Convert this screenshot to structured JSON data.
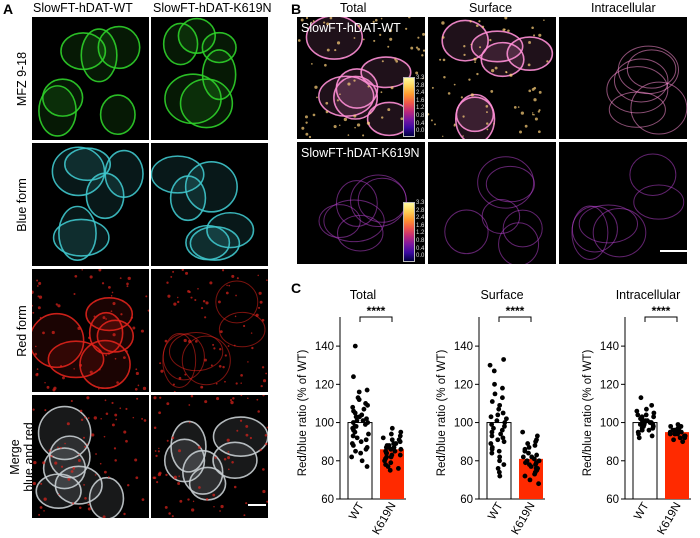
{
  "panel_a": {
    "letter": "A",
    "col_headers": [
      "SlowFT-hDAT-WT",
      "SlowFT-hDAT-K619N"
    ],
    "row_labels": [
      "MFZ 9-18",
      "Blue form",
      "Red form",
      "Merge blue and red"
    ],
    "row_label_lines": [
      [
        "MFZ 9-18"
      ],
      [
        "Blue form"
      ],
      [
        "Red form"
      ],
      [
        "Merge",
        "blue and red"
      ]
    ],
    "row_colors": [
      "#2fd12a",
      "#3fc6cc",
      "#e0231c",
      "#c8ced2"
    ]
  },
  "panel_b": {
    "letter": "B",
    "col_headers": [
      "Total",
      "Surface",
      "Intracellular"
    ],
    "row_labels": [
      "SlowFT-hDAT-WT",
      "SlowFT-hDAT-K619N"
    ],
    "colorbar_ticks": [
      "3.3",
      "2.8",
      "2.4",
      "1.6",
      "1.2",
      "0.8",
      "0.4",
      "0.0"
    ],
    "colorbar_colors": [
      "#fffaa0",
      "#ffd35a",
      "#ff9830",
      "#f0584a",
      "#c02a78",
      "#7a18a0",
      "#3a0aa0",
      "#000040"
    ]
  },
  "panel_c": {
    "letter": "C",
    "significance": "****"
  },
  "chart_data": [
    {
      "type": "bar",
      "title": "Total",
      "ylabel": "Red/blue ratio (% of WT)",
      "categories": [
        "WT",
        "K619N"
      ],
      "values": [
        100,
        86
      ],
      "bar_colors": [
        "#ffffff",
        "#ff2a00"
      ],
      "ylim": [
        60,
        150
      ],
      "yticks": [
        60,
        80,
        100,
        120,
        140
      ],
      "significance": "****",
      "points": [
        [
          140,
          124,
          117,
          116,
          113,
          112,
          110,
          109,
          108,
          107,
          106,
          105,
          104,
          103,
          103,
          102,
          101,
          101,
          100,
          100,
          99,
          98,
          98,
          97,
          96,
          95,
          94,
          93,
          92,
          91,
          90,
          89,
          88,
          87,
          86,
          85,
          84,
          82,
          80,
          77
        ],
        [
          97,
          95,
          94,
          93,
          92,
          91,
          91,
          90,
          89,
          89,
          88,
          88,
          87,
          87,
          87,
          86,
          86,
          85,
          85,
          84,
          84,
          83,
          83,
          82,
          82,
          81,
          80,
          79,
          78,
          77,
          76,
          75
        ]
      ]
    },
    {
      "type": "bar",
      "title": "Surface",
      "ylabel": "Red/blue ratio (% of WT)",
      "categories": [
        "WT",
        "K619N"
      ],
      "values": [
        100,
        81
      ],
      "bar_colors": [
        "#ffffff",
        "#ff2a00"
      ],
      "ylim": [
        60,
        150
      ],
      "yticks": [
        60,
        80,
        100,
        120,
        140
      ],
      "significance": "****",
      "points": [
        [
          133,
          130,
          127,
          120,
          118,
          115,
          113,
          111,
          109,
          107,
          105,
          104,
          103,
          102,
          101,
          100,
          99,
          98,
          97,
          96,
          95,
          94,
          93,
          92,
          91,
          90,
          89,
          87,
          86,
          85,
          84,
          82,
          80,
          78,
          76,
          74,
          72
        ],
        [
          95,
          93,
          91,
          90,
          89,
          88,
          87,
          86,
          85,
          84,
          83,
          82,
          82,
          81,
          80,
          80,
          79,
          79,
          78,
          78,
          77,
          76,
          76,
          75,
          74,
          73,
          72,
          70,
          68
        ]
      ]
    },
    {
      "type": "bar",
      "title": "Intracellular",
      "ylabel": "Red/blue ratio (% of WT)",
      "categories": [
        "WT",
        "K619N"
      ],
      "values": [
        100,
        95
      ],
      "bar_colors": [
        "#ffffff",
        "#ff2a00"
      ],
      "ylim": [
        60,
        150
      ],
      "yticks": [
        60,
        80,
        100,
        120,
        140
      ],
      "significance": "****",
      "points": [
        [
          113,
          109,
          107,
          106,
          105,
          104,
          104,
          103,
          103,
          102,
          102,
          101,
          101,
          101,
          100,
          100,
          100,
          99,
          99,
          99,
          98,
          98,
          97,
          97,
          96,
          96,
          95,
          94,
          93,
          92
        ],
        [
          99,
          98,
          98,
          97,
          97,
          96,
          96,
          96,
          95,
          95,
          95,
          95,
          94,
          94,
          94,
          93,
          93,
          92,
          92,
          91,
          90
        ]
      ]
    }
  ]
}
